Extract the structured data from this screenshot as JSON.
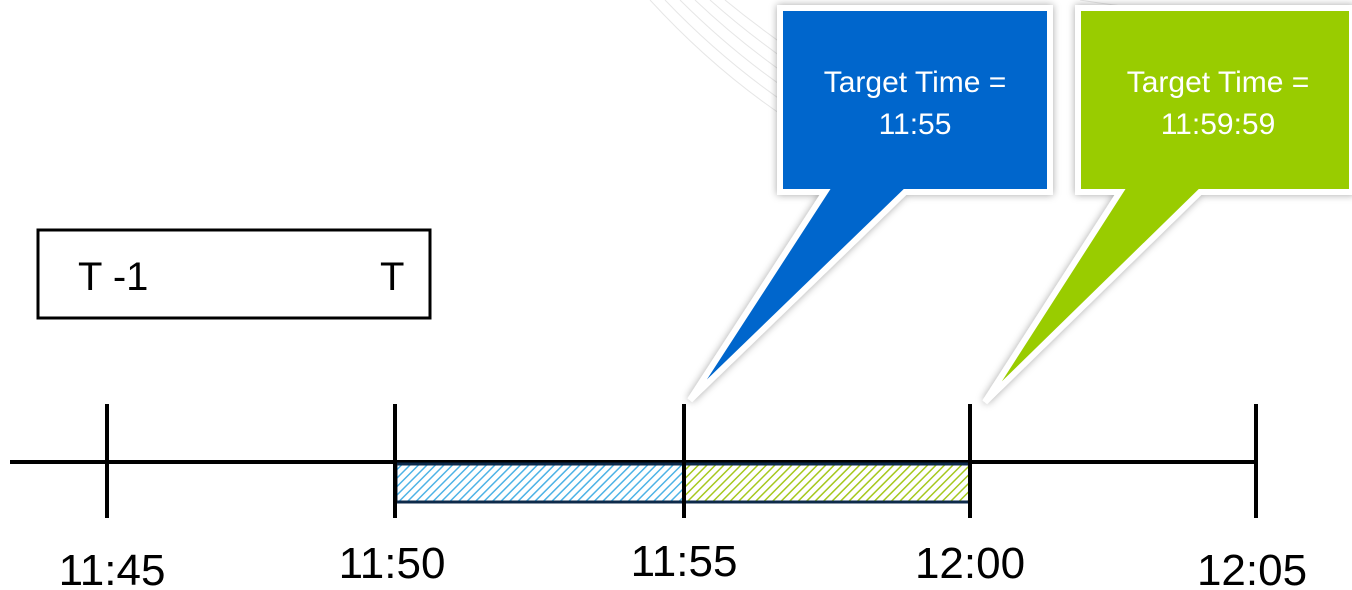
{
  "legend": {
    "left_label": "T -1",
    "right_label": "T"
  },
  "callouts": [
    {
      "line1": "Target Time =",
      "line2": "11:55",
      "color": "#0066cc"
    },
    {
      "line1": "Target Time =",
      "line2": "11:59:59",
      "color": "#99cc00"
    }
  ],
  "timeline": {
    "ticks": [
      "11:45",
      "11:50",
      "11:55",
      "12:00",
      "12:05"
    ]
  },
  "segments": [
    {
      "from": "11:50",
      "to": "11:55",
      "color": "#4db3e6"
    },
    {
      "from": "11:55",
      "to": "12:00",
      "color": "#a6c81e"
    }
  ],
  "colors": {
    "line": "#000000",
    "segment_border": "#0d2a4a",
    "decor": "#e6e6e6"
  }
}
